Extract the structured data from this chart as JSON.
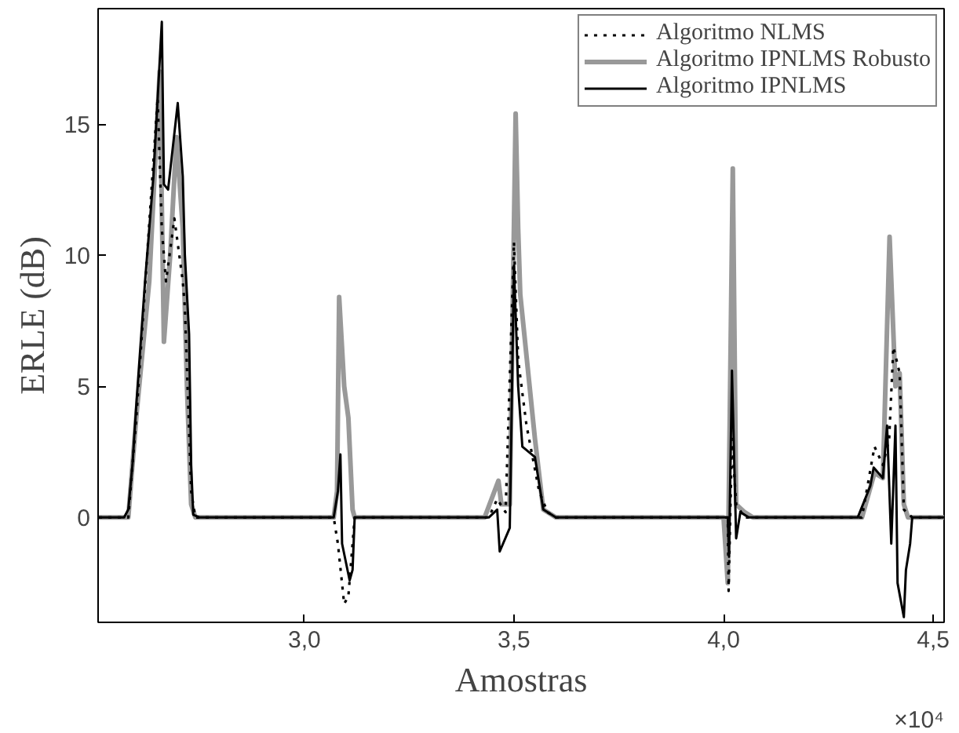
{
  "chart_data": {
    "type": "line",
    "xlabel": "Amostras",
    "ylabel": "ERLE (dB)",
    "annotations": [
      "×10⁴"
    ],
    "xlim": [
      2.508,
      4.526
    ],
    "ylim": [
      -4,
      19.4
    ],
    "xticks": [
      {
        "value": 3.0,
        "label": "3,0"
      },
      {
        "value": 3.5,
        "label": "3,5"
      },
      {
        "value": 4.0,
        "label": "4,0"
      },
      {
        "value": 4.5,
        "label": "4,5"
      }
    ],
    "yticks": [
      0,
      5,
      10,
      15
    ],
    "grid": false,
    "legend": "top right",
    "series": [
      {
        "name": "Algoritmo NLMS",
        "color": "#000000",
        "line_style": "dotted",
        "x": [
          2.51,
          2.58,
          2.6,
          2.65,
          2.66,
          2.67,
          2.69,
          2.71,
          2.715,
          2.73,
          2.74,
          3.07,
          3.08,
          3.095,
          3.105,
          3.12,
          3.44,
          3.46,
          3.48,
          3.5,
          3.51,
          3.53,
          3.56,
          3.58,
          3.6,
          4.01,
          4.012,
          4.02,
          4.03,
          4.05,
          4.33,
          4.36,
          4.38,
          4.395,
          4.405,
          4.42,
          4.43,
          4.45,
          4.526
        ],
        "values": [
          0,
          0,
          4,
          16,
          11,
          9,
          11.4,
          9,
          8,
          1,
          0,
          0,
          -1,
          -3.3,
          -3,
          0,
          0,
          0.7,
          0.2,
          10.5,
          6,
          3.5,
          1,
          0.2,
          0,
          0,
          -2.8,
          3,
          0.5,
          0,
          0,
          2.7,
          2,
          3,
          6.5,
          5.5,
          0.3,
          0,
          0
        ]
      },
      {
        "name": "Algoritmo IPNLMS Robusto",
        "color": "#999999",
        "line_style": "solid",
        "x": [
          2.51,
          2.58,
          2.6,
          2.63,
          2.655,
          2.665,
          2.68,
          2.695,
          2.71,
          2.72,
          2.73,
          2.74,
          3.07,
          3.078,
          3.083,
          3.095,
          3.105,
          3.115,
          3.12,
          3.43,
          3.463,
          3.47,
          3.49,
          3.504,
          3.51,
          3.515,
          3.55,
          3.57,
          3.6,
          4.0,
          4.01,
          4.022,
          4.03,
          4.05,
          4.07,
          4.33,
          4.36,
          4.38,
          4.396,
          4.41,
          4.42,
          4.43,
          4.44,
          4.526
        ],
        "values": [
          0,
          0,
          4,
          9,
          17,
          6.7,
          10,
          14.5,
          11,
          5,
          0.5,
          0,
          0,
          1,
          8.4,
          5,
          3.8,
          0.3,
          0,
          0,
          1.4,
          0.5,
          0.5,
          15.4,
          11,
          8.5,
          3,
          0.3,
          0,
          0,
          -2.5,
          13.3,
          0.5,
          0.2,
          0,
          0,
          1.7,
          1.5,
          10.7,
          5,
          5.5,
          0.5,
          0,
          0
        ]
      },
      {
        "name": "Algoritmo IPNLMS",
        "color": "#000000",
        "line_style": "solid",
        "x": [
          2.51,
          2.57,
          2.58,
          2.59,
          2.6,
          2.62,
          2.64,
          2.66,
          2.665,
          2.675,
          2.698,
          2.71,
          2.715,
          2.725,
          2.73,
          2.735,
          2.75,
          3.07,
          3.08,
          3.086,
          3.09,
          3.108,
          3.115,
          3.12,
          3.44,
          3.46,
          3.466,
          3.49,
          3.5,
          3.51,
          3.52,
          3.55,
          3.57,
          3.6,
          4.01,
          4.013,
          4.02,
          4.03,
          4.04,
          4.06,
          4.32,
          4.35,
          4.358,
          4.38,
          4.39,
          4.4,
          4.41,
          4.415,
          4.43,
          4.435,
          4.445,
          4.45,
          4.526
        ],
        "values": [
          0,
          0,
          0.3,
          2,
          4.5,
          9,
          13,
          18.9,
          12.7,
          12.5,
          15.8,
          13,
          10,
          7,
          2,
          0.1,
          0,
          0,
          1,
          2.4,
          -1,
          -2.4,
          -2,
          0,
          0,
          0.3,
          -1.3,
          -0.4,
          9.6,
          5,
          2.7,
          2.3,
          0.3,
          0,
          0,
          -1.5,
          5.6,
          -0.8,
          0.2,
          0,
          0,
          1.2,
          1.9,
          1.5,
          3.5,
          -1,
          3.5,
          -2.5,
          -3.8,
          -2,
          -1,
          0,
          0
        ]
      }
    ]
  }
}
